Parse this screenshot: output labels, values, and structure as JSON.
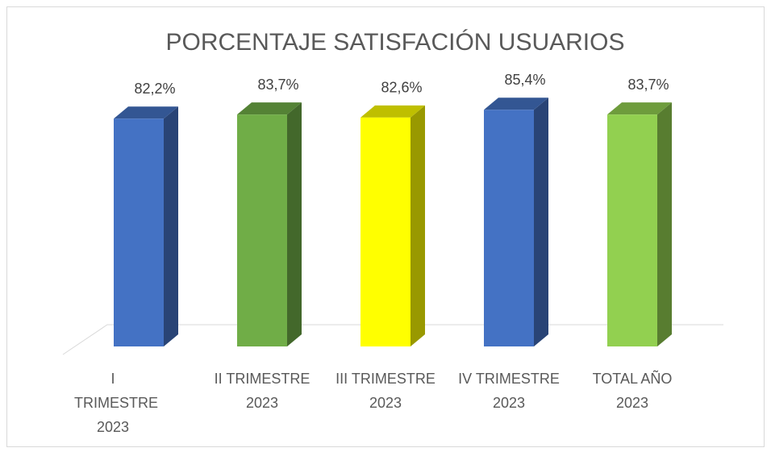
{
  "chart_data": {
    "type": "bar3d",
    "title": "PORCENTAJE SATISFACIÓN USUARIOS",
    "categories": [
      "I TRIMESTRE 2023",
      "II TRIMESTRE 2023",
      "III TRIMESTRE 2023",
      "IV TRIMESTRE 2023",
      "TOTAL AÑO 2023"
    ],
    "values": [
      82.2,
      83.7,
      82.6,
      85.4,
      83.7
    ],
    "value_labels": [
      "82,2%",
      "83,7%",
      "82,6%",
      "85,4%",
      "83,7%"
    ],
    "colors": [
      "#4472c4",
      "#70ad47",
      "#ffff00",
      "#4472c4",
      "#92d050"
    ],
    "ylim": [
      0,
      100
    ]
  }
}
